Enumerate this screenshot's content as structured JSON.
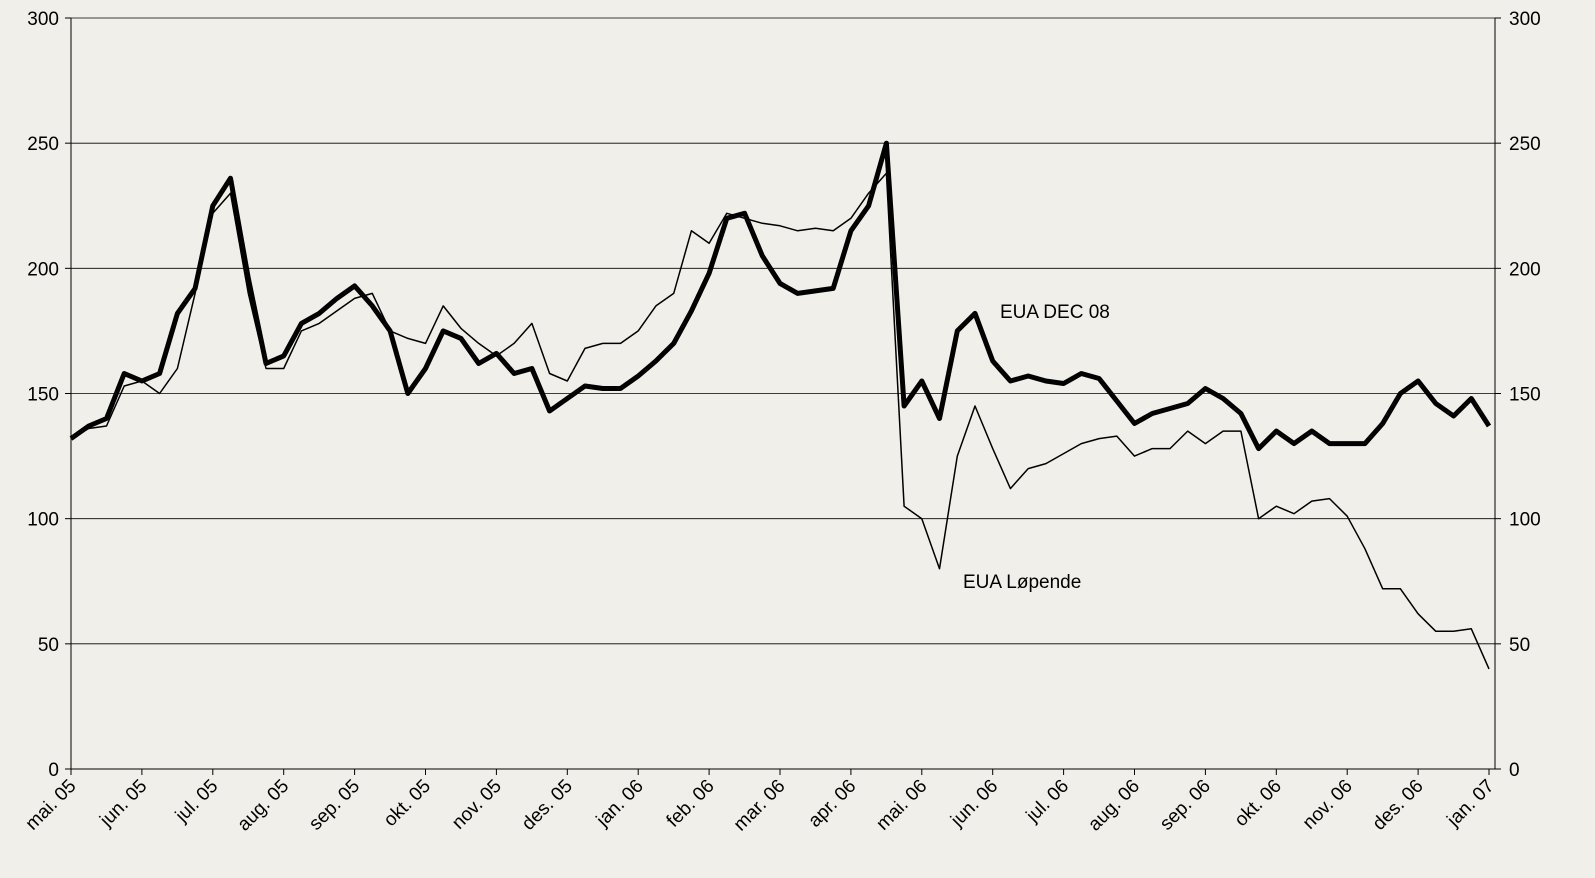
{
  "chart_data": {
    "type": "line",
    "categories": [
      "mai. 05",
      null,
      null,
      null,
      "jun. 05",
      null,
      null,
      null,
      "jul. 05",
      null,
      null,
      null,
      "aug. 05",
      null,
      null,
      null,
      "sep. 05",
      null,
      null,
      null,
      "okt. 05",
      null,
      null,
      null,
      "nov. 05",
      null,
      null,
      null,
      "des. 05",
      null,
      null,
      null,
      "jan. 06",
      null,
      null,
      null,
      "feb. 06",
      null,
      null,
      null,
      "mar. 06",
      null,
      null,
      null,
      "apr. 06",
      null,
      null,
      null,
      "mai. 06",
      null,
      null,
      null,
      "jun. 06",
      null,
      null,
      null,
      "jul. 06",
      null,
      null,
      null,
      "aug. 06",
      null,
      null,
      null,
      "sep. 06",
      null,
      null,
      null,
      "okt. 06",
      null,
      null,
      null,
      "nov. 06",
      null,
      null,
      null,
      "des. 06",
      null,
      null,
      null,
      "jan. 07"
    ],
    "series": [
      {
        "name": "EUA DEC 08",
        "color": "#000000",
        "width": 5,
        "values": [
          132,
          137,
          140,
          158,
          155,
          158,
          182,
          192,
          225,
          236,
          196,
          162,
          165,
          178,
          182,
          188,
          193,
          185,
          175,
          150,
          160,
          175,
          172,
          162,
          166,
          158,
          160,
          143,
          148,
          153,
          152,
          152,
          157,
          163,
          170,
          183,
          198,
          220,
          222,
          205,
          194,
          190,
          191,
          192,
          215,
          225,
          250,
          145,
          155,
          140,
          175,
          182,
          163,
          155,
          157,
          155,
          154,
          158,
          156,
          147,
          138,
          142,
          144,
          146,
          152,
          148,
          142,
          128,
          135,
          130,
          135,
          130,
          130,
          130,
          138,
          150,
          155,
          146,
          141,
          148,
          137
        ]
      },
      {
        "name": "EUA Løpende",
        "color": "#000000",
        "width": 1.5,
        "values": [
          132,
          136,
          137,
          153,
          155,
          150,
          160,
          190,
          222,
          230,
          190,
          160,
          160,
          175,
          178,
          183,
          188,
          190,
          175,
          172,
          170,
          185,
          176,
          170,
          165,
          170,
          178,
          158,
          155,
          168,
          170,
          170,
          175,
          185,
          190,
          215,
          210,
          222,
          220,
          218,
          217,
          215,
          216,
          215,
          220,
          230,
          238,
          105,
          100,
          80,
          125,
          145,
          128,
          112,
          120,
          122,
          126,
          130,
          132,
          133,
          125,
          128,
          128,
          135,
          130,
          135,
          135,
          100,
          105,
          102,
          107,
          108,
          101,
          88,
          72,
          72,
          62,
          55,
          55,
          56,
          40
        ]
      }
    ],
    "annotations": [
      {
        "text": "EUA DEC 08",
        "series": 0
      },
      {
        "text": "EUA Løpende",
        "series": 1
      }
    ],
    "ylim": [
      0,
      300
    ],
    "yticks": [
      0,
      50,
      100,
      150,
      200,
      250,
      300
    ],
    "y2lim": [
      0,
      300
    ],
    "y2ticks": [
      0,
      50,
      100,
      150,
      200,
      250,
      300
    ],
    "grid": true
  }
}
